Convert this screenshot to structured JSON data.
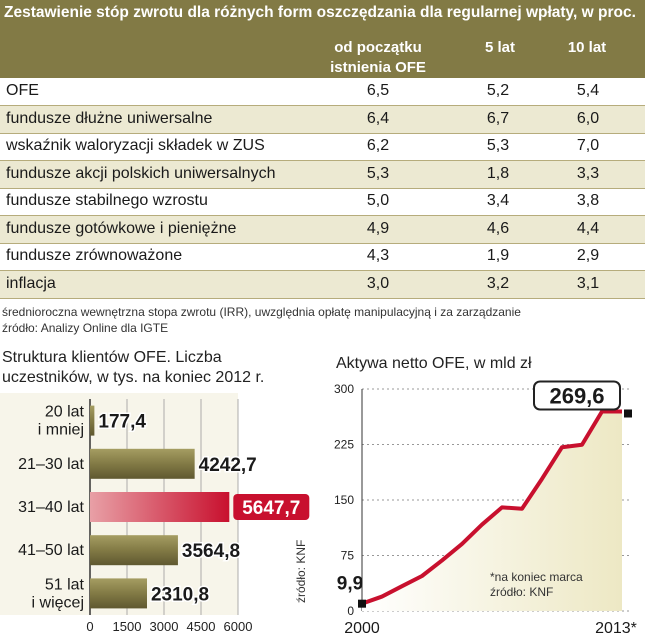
{
  "table": {
    "title": "Zestawienie stóp zwrotu dla różnych form oszczędzania dla regularnej wpłaty, w proc.",
    "columns": [
      "od początku istnienia OFE",
      "5 lat",
      "10 lat"
    ],
    "rows": [
      {
        "label": "OFE",
        "values": [
          "6,5",
          "5,2",
          "5,4"
        ]
      },
      {
        "label": "fundusze dłużne uniwersalne",
        "values": [
          "6,4",
          "6,7",
          "6,0"
        ]
      },
      {
        "label": "wskaźnik waloryzacji składek w ZUS",
        "values": [
          "6,2",
          "5,3",
          "7,0"
        ]
      },
      {
        "label": "fundusze akcji polskich uniwersalnych",
        "values": [
          "5,3",
          "1,8",
          "3,3"
        ]
      },
      {
        "label": "fundusze stabilnego wzrostu",
        "values": [
          "5,0",
          "3,4",
          "3,8"
        ]
      },
      {
        "label": "fundusze gotówkowe i pieniężne",
        "values": [
          "4,9",
          "4,6",
          "4,4"
        ]
      },
      {
        "label": "fundusze zrównoważone",
        "values": [
          "4,3",
          "1,9",
          "2,9"
        ]
      },
      {
        "label": "inflacja",
        "values": [
          "3,0",
          "3,2",
          "3,1"
        ]
      }
    ],
    "note": "średnioroczna wewnętrzna stopa zwrotu (IRR), uwzględnia opłatę manipulacyjną i za zarządzanie",
    "source": "źródło: Analizy Online dla IGTE"
  },
  "chart_data": [
    {
      "type": "bar",
      "orientation": "horizontal",
      "title": "Struktura klientów OFE. Liczba uczestników, w tys. na koniec 2012 r.",
      "categories": [
        "20 lat i mniej",
        "21–30 lat",
        "31–40 lat",
        "41–50 lat",
        "51 lat i więcej"
      ],
      "category_lines": [
        [
          "20 lat",
          "i mniej"
        ],
        [
          "21–30 lat"
        ],
        [
          "31–40 lat"
        ],
        [
          "41–50 lat"
        ],
        [
          "51 lat",
          "i więcej"
        ]
      ],
      "values": [
        177.4,
        4242.7,
        5647.7,
        3564.8,
        2310.8
      ],
      "value_labels": [
        "177,4",
        "4242,7",
        "5647,7",
        "3564,8",
        "2310,8"
      ],
      "highlight_index": 2,
      "xlim": [
        0,
        6000
      ],
      "xticks": [
        0,
        1500,
        3000,
        4500,
        6000
      ],
      "xtick_labels": [
        "0",
        "1500",
        "3000",
        "4500",
        "6000"
      ],
      "colors": {
        "bar": "#827a45",
        "highlight": "#c8102e",
        "bar_light": "#e8e4c8"
      }
    },
    {
      "type": "area",
      "title": "Aktywa netto OFE, w mld zł",
      "x": [
        2000,
        2001,
        2002,
        2003,
        2004,
        2005,
        2006,
        2007,
        2008,
        2009,
        2010,
        2011,
        2012,
        2013
      ],
      "values": [
        9.9,
        19.5,
        33.5,
        47.3,
        68.3,
        90.6,
        116.8,
        140.0,
        138.2,
        178.6,
        221.3,
        224.7,
        269.6,
        269.6
      ],
      "first_label": "9,9",
      "last_label": "269,6",
      "ylim": [
        0,
        300
      ],
      "yticks": [
        0,
        75,
        150,
        225,
        300
      ],
      "ytick_labels": [
        "0",
        "75",
        "150",
        "225",
        "300"
      ],
      "xtick_labels": [
        "2000",
        "2013*"
      ],
      "side_label": "źródło: KNF",
      "footnote": "*na koniec marca",
      "source": "źródło: KNF",
      "colors": {
        "line": "#c8102e",
        "fill": "#ede8c4"
      }
    }
  ]
}
